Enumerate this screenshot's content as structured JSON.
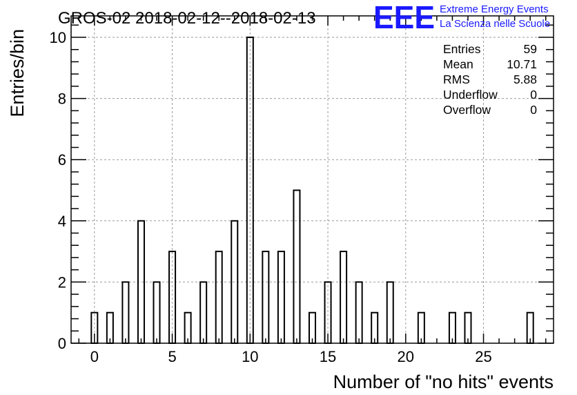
{
  "colors": {
    "logo": "#1a1aff",
    "grid": "#9a9a9a",
    "axis": "#000000",
    "bar": "#000000"
  },
  "chart_data": {
    "type": "bar",
    "title": "GROS-02 2018-02-12--2018-02-13",
    "xlabel": "Number of \"no hits\" events",
    "ylabel": "Entries/bin",
    "xlim": [
      -1.5,
      29.5
    ],
    "ylim": [
      0,
      10.7
    ],
    "x_ticks": [
      "0",
      "5",
      "10",
      "15",
      "20",
      "25"
    ],
    "y_ticks": [
      "0",
      "2",
      "4",
      "6",
      "8",
      "10"
    ],
    "grid": true,
    "bins": [
      {
        "x": 0,
        "y": 1
      },
      {
        "x": 1,
        "y": 1
      },
      {
        "x": 2,
        "y": 2
      },
      {
        "x": 3,
        "y": 4
      },
      {
        "x": 4,
        "y": 2
      },
      {
        "x": 5,
        "y": 3
      },
      {
        "x": 6,
        "y": 1
      },
      {
        "x": 7,
        "y": 2
      },
      {
        "x": 8,
        "y": 3
      },
      {
        "x": 9,
        "y": 4
      },
      {
        "x": 10,
        "y": 10
      },
      {
        "x": 11,
        "y": 3
      },
      {
        "x": 12,
        "y": 3
      },
      {
        "x": 13,
        "y": 5
      },
      {
        "x": 14,
        "y": 1
      },
      {
        "x": 15,
        "y": 2
      },
      {
        "x": 16,
        "y": 3
      },
      {
        "x": 17,
        "y": 2
      },
      {
        "x": 18,
        "y": 1
      },
      {
        "x": 19,
        "y": 2
      },
      {
        "x": 21,
        "y": 1
      },
      {
        "x": 23,
        "y": 1
      },
      {
        "x": 24,
        "y": 1
      },
      {
        "x": 28,
        "y": 1
      }
    ],
    "stats": [
      {
        "label": "Entries",
        "value": "59"
      },
      {
        "label": "Mean",
        "value": "10.71"
      },
      {
        "label": "RMS",
        "value": "5.88"
      },
      {
        "label": "Underflow",
        "value": "0"
      },
      {
        "label": "Overflow",
        "value": "0"
      }
    ],
    "stats_placement": "top-right"
  },
  "logo": {
    "mark": "EEE",
    "line1": "Extreme Energy Events",
    "line2": "La Scienza nelle Scuole"
  }
}
